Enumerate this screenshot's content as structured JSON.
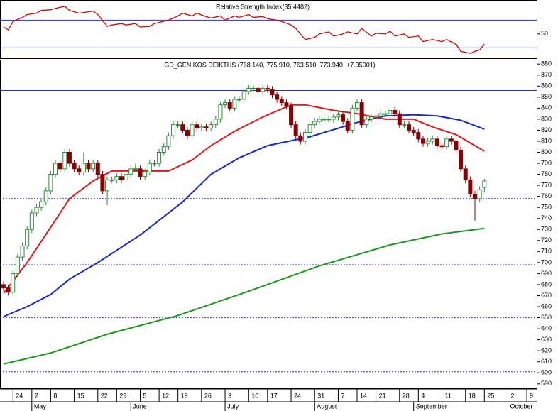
{
  "chart_data": [
    {
      "type": "line",
      "title": "Relative Strength Index(35.4482)",
      "xlim": [
        -0.75,
        113.1
      ],
      "ylim": [
        15,
        97
      ],
      "yticks": [
        50
      ],
      "levels": [
        {
          "value": 70,
          "style": "solid",
          "color": "#2233cc"
        },
        {
          "value": 30,
          "style": "solid",
          "color": "#2233cc"
        }
      ],
      "series": [
        {
          "color": "#e00000",
          "x": [
            0,
            1,
            2,
            4,
            5,
            7,
            8,
            10,
            11,
            13,
            14,
            16,
            17,
            19,
            20,
            22,
            23,
            25,
            26,
            28,
            29,
            31,
            32,
            35,
            37,
            38,
            40,
            41,
            43,
            44,
            46,
            47,
            49,
            50,
            52,
            53,
            55,
            56,
            58,
            59,
            61,
            62,
            64,
            66,
            67,
            69,
            70,
            72,
            73,
            75,
            76,
            78,
            79,
            81,
            82,
            83,
            85,
            86,
            88,
            89,
            91,
            93,
            94,
            96,
            97,
            99,
            100,
            101,
            102
          ],
          "values": [
            60,
            56,
            68,
            74,
            78,
            80,
            84,
            85,
            87,
            90,
            84,
            80,
            81,
            83,
            78,
            61,
            63,
            65,
            63,
            65,
            60,
            61,
            65,
            70,
            76,
            80,
            76,
            80,
            75,
            73,
            76,
            70,
            76,
            74,
            78,
            74,
            75,
            72,
            70,
            68,
            63,
            58,
            42,
            45,
            50,
            53,
            47,
            50,
            53,
            50,
            58,
            47,
            51,
            50,
            54,
            47,
            50,
            45,
            47,
            39,
            42,
            39,
            42,
            35,
            25,
            22,
            25,
            27,
            35.4482
          ]
        }
      ]
    },
    {
      "type": "candlestick",
      "title": "GD_GENIKOS DEIKTHS (768.140, 775.910, 763.510, 773.940, +7.95001)",
      "xlim": [
        -0.75,
        113.1
      ],
      "ylim": [
        586,
        884
      ],
      "yticks": [
        590,
        600,
        610,
        620,
        630,
        640,
        650,
        660,
        670,
        680,
        690,
        700,
        710,
        720,
        730,
        740,
        750,
        760,
        770,
        780,
        790,
        800,
        810,
        820,
        830,
        840,
        850,
        860,
        870,
        880
      ],
      "xticks": [
        {
          "value": 2,
          "label": "24"
        },
        {
          "value": 6,
          "label": "2"
        },
        {
          "value": 10,
          "label": "8"
        },
        {
          "value": 15,
          "label": "15"
        },
        {
          "value": 20,
          "label": "22"
        },
        {
          "value": 24,
          "label": "29"
        },
        {
          "value": 29,
          "label": "5"
        },
        {
          "value": 33,
          "label": "12"
        },
        {
          "value": 37,
          "label": "19"
        },
        {
          "value": 42,
          "label": "26"
        },
        {
          "value": 47,
          "label": "3"
        },
        {
          "value": 52,
          "label": "10"
        },
        {
          "value": 56,
          "label": "17"
        },
        {
          "value": 61,
          "label": "24"
        },
        {
          "value": 66,
          "label": "31"
        },
        {
          "value": 71,
          "label": "7"
        },
        {
          "value": 75,
          "label": "14"
        },
        {
          "value": 79,
          "label": "21"
        },
        {
          "value": 84,
          "label": "28"
        },
        {
          "value": 88,
          "label": "4"
        },
        {
          "value": 93,
          "label": "11"
        },
        {
          "value": 98,
          "label": "18"
        },
        {
          "value": 102,
          "label": "25"
        },
        {
          "value": 107,
          "label": "2"
        },
        {
          "value": 111,
          "label": "9"
        }
      ],
      "month_ticks": [
        {
          "value": 6,
          "label": "May"
        },
        {
          "value": 27,
          "label": "June"
        },
        {
          "value": 47,
          "label": "July"
        },
        {
          "value": 66,
          "label": "August"
        },
        {
          "value": 87,
          "label": "September"
        },
        {
          "value": 107,
          "label": "October"
        }
      ],
      "levels": [
        {
          "value": 856,
          "style": "solid",
          "color": "#2233cc"
        },
        {
          "value": 758,
          "style": "dotted",
          "color": "#2233cc"
        },
        {
          "value": 698,
          "style": "dotted",
          "color": "#2233cc"
        },
        {
          "value": 650,
          "style": "dotted",
          "color": "#2233cc"
        },
        {
          "value": 601,
          "style": "dotted",
          "color": "#2233cc"
        }
      ],
      "up_color": "#2e8b3a",
      "down_color": "#8b0000",
      "open": [
        680,
        677,
        673,
        690,
        705,
        715,
        730,
        745,
        750,
        755,
        765,
        780,
        790,
        785,
        800,
        790,
        785,
        782,
        790,
        785,
        790,
        780,
        765,
        775,
        775,
        778,
        775,
        780,
        785,
        785,
        778,
        782,
        790,
        790,
        800,
        805,
        815,
        825,
        825,
        820,
        815,
        825,
        822,
        823,
        822,
        825,
        830,
        843,
        845,
        840,
        848,
        848,
        855,
        858,
        858,
        855,
        858,
        857,
        852,
        848,
        845,
        842,
        825,
        815,
        810,
        818,
        825,
        828,
        830,
        830,
        830,
        832,
        834,
        828,
        820,
        840,
        845,
        825,
        830,
        832,
        833,
        835,
        835,
        838,
        835,
        825,
        825,
        820,
        818,
        812,
        808,
        810,
        812,
        806,
        805,
        812,
        810,
        802,
        785,
        775,
        762,
        758,
        768.14
      ],
      "high": [
        683,
        680,
        693,
        708,
        718,
        733,
        748,
        753,
        758,
        768,
        783,
        793,
        793,
        803,
        803,
        793,
        788,
        800,
        793,
        793,
        793,
        783,
        778,
        778,
        781,
        781,
        783,
        788,
        790,
        788,
        785,
        793,
        793,
        803,
        808,
        818,
        828,
        828,
        828,
        823,
        828,
        828,
        826,
        826,
        828,
        833,
        846,
        848,
        848,
        851,
        851,
        858,
        861,
        861,
        861,
        861,
        861,
        860,
        855,
        851,
        848,
        845,
        828,
        818,
        821,
        828,
        831,
        833,
        833,
        833,
        835,
        837,
        837,
        831,
        843,
        848,
        848,
        833,
        835,
        836,
        838,
        838,
        841,
        841,
        838,
        828,
        828,
        823,
        821,
        815,
        813,
        815,
        815,
        809,
        815,
        815,
        813,
        805,
        788,
        778,
        765,
        769,
        775.91
      ],
      "low": [
        674,
        670,
        670,
        687,
        702,
        712,
        727,
        742,
        747,
        752,
        762,
        777,
        782,
        782,
        787,
        782,
        779,
        779,
        782,
        782,
        777,
        762,
        752,
        772,
        772,
        772,
        772,
        777,
        782,
        775,
        775,
        779,
        787,
        787,
        797,
        802,
        812,
        822,
        817,
        812,
        812,
        819,
        819,
        819,
        819,
        822,
        827,
        840,
        837,
        837,
        845,
        845,
        852,
        855,
        852,
        852,
        854,
        849,
        845,
        842,
        839,
        822,
        812,
        807,
        807,
        815,
        822,
        825,
        827,
        827,
        827,
        829,
        825,
        817,
        817,
        837,
        822,
        822,
        827,
        829,
        830,
        832,
        832,
        832,
        822,
        822,
        817,
        815,
        809,
        805,
        805,
        807,
        803,
        802,
        802,
        807,
        799,
        782,
        772,
        759,
        738,
        755,
        763.51
      ],
      "close": [
        677,
        673,
        690,
        705,
        715,
        730,
        745,
        750,
        755,
        765,
        780,
        790,
        785,
        800,
        790,
        785,
        782,
        790,
        785,
        790,
        780,
        765,
        775,
        775,
        778,
        775,
        780,
        785,
        785,
        778,
        782,
        790,
        790,
        800,
        805,
        815,
        825,
        825,
        820,
        815,
        825,
        822,
        823,
        822,
        825,
        830,
        843,
        845,
        840,
        848,
        848,
        855,
        858,
        858,
        855,
        858,
        857,
        852,
        848,
        845,
        842,
        825,
        815,
        810,
        818,
        825,
        828,
        830,
        830,
        830,
        832,
        834,
        828,
        820,
        840,
        845,
        825,
        830,
        832,
        833,
        835,
        835,
        838,
        835,
        825,
        825,
        820,
        818,
        812,
        808,
        810,
        812,
        806,
        805,
        812,
        810,
        802,
        785,
        775,
        762,
        758,
        766,
        773.94
      ],
      "series": [
        {
          "color": "#1a9a1a",
          "x": [
            0,
            10,
            22,
            37,
            52,
            67,
            82,
            93,
            102
          ],
          "values": [
            608,
            618,
            635,
            652,
            674,
            697,
            716,
            726,
            731
          ]
        },
        {
          "color": "#1428d8",
          "x": [
            0,
            5,
            10,
            14,
            20,
            29,
            38,
            44,
            50,
            56,
            65,
            75,
            81,
            87,
            92,
            97,
            102
          ],
          "values": [
            651,
            660,
            671,
            685,
            700,
            725,
            755,
            780,
            795,
            806,
            814,
            827,
            833,
            834,
            833,
            829,
            821
          ]
        },
        {
          "color": "#e8141a",
          "x": [
            0,
            5,
            10,
            14,
            19,
            23,
            29,
            35,
            40,
            44,
            49,
            55,
            61,
            64,
            70,
            75,
            81,
            87,
            91,
            96,
            102
          ],
          "values": [
            672,
            700,
            732,
            758,
            774,
            783,
            783,
            783,
            793,
            806,
            819,
            832,
            843,
            843,
            838,
            835,
            830,
            830,
            823,
            816,
            801
          ]
        }
      ]
    }
  ]
}
